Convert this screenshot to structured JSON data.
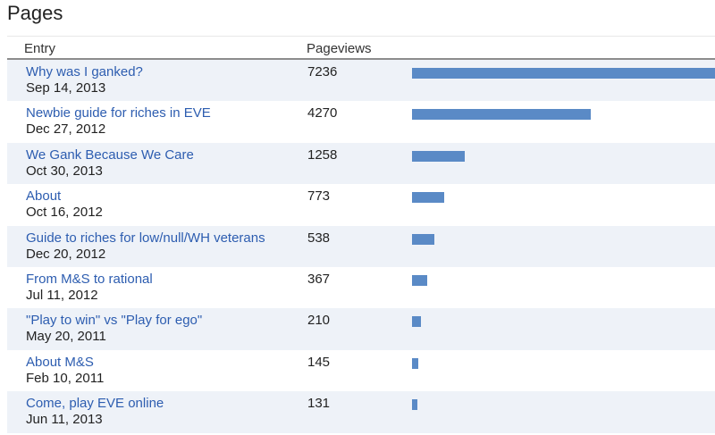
{
  "page": {
    "title": "Pages"
  },
  "table": {
    "headers": {
      "entry": "Entry",
      "pageviews": "Pageviews"
    },
    "bar_color": "#5a8ac6",
    "max_pageviews": 7236,
    "rows": [
      {
        "title": "Why was I ganked?",
        "date": "Sep 14, 2013",
        "pageviews": "7236",
        "value": 7236
      },
      {
        "title": "Newbie guide for riches in EVE",
        "date": "Dec 27, 2012",
        "pageviews": "4270",
        "value": 4270
      },
      {
        "title": "We Gank Because We Care",
        "date": "Oct 30, 2013",
        "pageviews": "1258",
        "value": 1258
      },
      {
        "title": "About",
        "date": "Oct 16, 2012",
        "pageviews": "773",
        "value": 773
      },
      {
        "title": "Guide to riches for low/null/WH veterans",
        "date": "Dec 20, 2012",
        "pageviews": "538",
        "value": 538
      },
      {
        "title": "From M&S to rational",
        "date": "Jul 11, 2012",
        "pageviews": "367",
        "value": 367
      },
      {
        "title": "\"Play to win\" vs \"Play for ego\"",
        "date": "May 20, 2011",
        "pageviews": "210",
        "value": 210
      },
      {
        "title": "About M&S",
        "date": "Feb 10, 2011",
        "pageviews": "145",
        "value": 145
      },
      {
        "title": "Come, play EVE online",
        "date": "Jun 11, 2013",
        "pageviews": "131",
        "value": 131
      }
    ]
  }
}
